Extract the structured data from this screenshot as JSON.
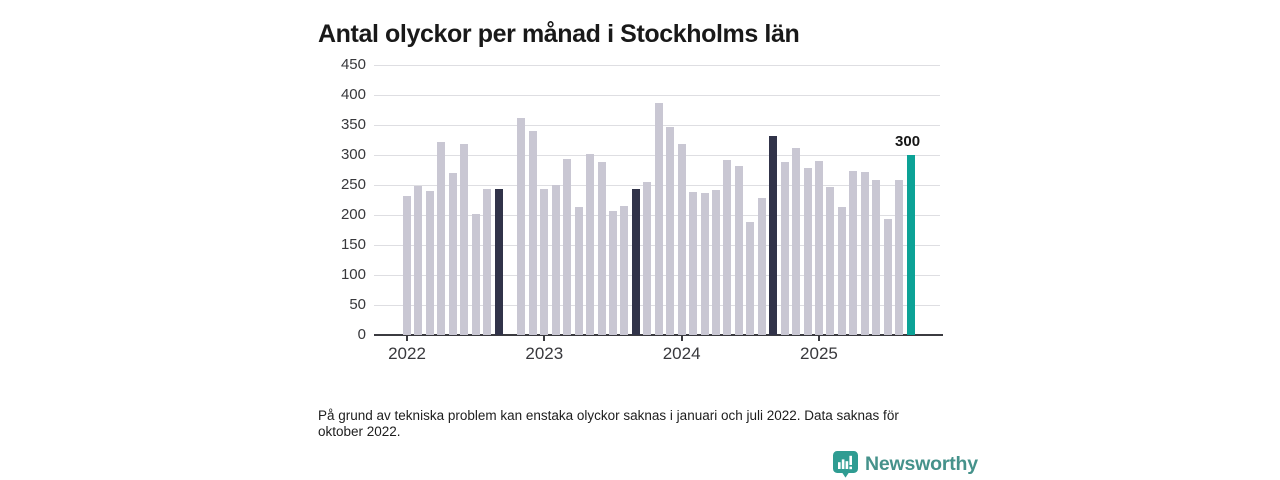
{
  "footnote": {
    "text": "På grund av tekniska problem kan enstaka olyckor saknas i januari och juli 2022. Data saknas för oktober 2022."
  },
  "branding": {
    "name": "Newsworthy",
    "icon": "newsworthy-speech-bubble-chart-icon",
    "color": "#45928b"
  },
  "chart_data": {
    "type": "bar",
    "title": "Antal olyckor per månad i Stockholms län",
    "xlabel": "",
    "ylabel": "",
    "ylim": [
      0,
      450
    ],
    "y_ticks": [
      0,
      50,
      100,
      150,
      200,
      250,
      300,
      350,
      400,
      450
    ],
    "x_ticks": [
      {
        "label": "2022",
        "month_index": 0
      },
      {
        "label": "2023",
        "month_index": 12
      },
      {
        "label": "2024",
        "month_index": 24
      },
      {
        "label": "2025",
        "month_index": 36
      }
    ],
    "grid": true,
    "legend": "none",
    "colors": {
      "default": "#c9c7d3",
      "emphasis": "#313349",
      "latest": "#0ca296"
    },
    "bars": [
      {
        "month": "2022-01",
        "value": 232,
        "style": "default"
      },
      {
        "month": "2022-02",
        "value": 248,
        "style": "default"
      },
      {
        "month": "2022-03",
        "value": 240,
        "style": "default"
      },
      {
        "month": "2022-04",
        "value": 322,
        "style": "default"
      },
      {
        "month": "2022-05",
        "value": 270,
        "style": "default"
      },
      {
        "month": "2022-06",
        "value": 318,
        "style": "default"
      },
      {
        "month": "2022-07",
        "value": 201,
        "style": "default"
      },
      {
        "month": "2022-08",
        "value": 244,
        "style": "default"
      },
      {
        "month": "2022-09",
        "value": 243,
        "style": "emphasis"
      },
      {
        "month": "2022-10",
        "value": null,
        "style": "default"
      },
      {
        "month": "2022-11",
        "value": 362,
        "style": "default"
      },
      {
        "month": "2022-12",
        "value": 340,
        "style": "default"
      },
      {
        "month": "2023-01",
        "value": 244,
        "style": "default"
      },
      {
        "month": "2023-02",
        "value": 250,
        "style": "default"
      },
      {
        "month": "2023-03",
        "value": 293,
        "style": "default"
      },
      {
        "month": "2023-04",
        "value": 214,
        "style": "default"
      },
      {
        "month": "2023-05",
        "value": 302,
        "style": "default"
      },
      {
        "month": "2023-06",
        "value": 288,
        "style": "default"
      },
      {
        "month": "2023-07",
        "value": 206,
        "style": "default"
      },
      {
        "month": "2023-08",
        "value": 215,
        "style": "default"
      },
      {
        "month": "2023-09",
        "value": 244,
        "style": "emphasis"
      },
      {
        "month": "2023-10",
        "value": 255,
        "style": "default"
      },
      {
        "month": "2023-11",
        "value": 387,
        "style": "default"
      },
      {
        "month": "2023-12",
        "value": 346,
        "style": "default"
      },
      {
        "month": "2024-01",
        "value": 319,
        "style": "default"
      },
      {
        "month": "2024-02",
        "value": 239,
        "style": "default"
      },
      {
        "month": "2024-03",
        "value": 236,
        "style": "default"
      },
      {
        "month": "2024-04",
        "value": 242,
        "style": "default"
      },
      {
        "month": "2024-05",
        "value": 292,
        "style": "default"
      },
      {
        "month": "2024-06",
        "value": 281,
        "style": "default"
      },
      {
        "month": "2024-07",
        "value": 189,
        "style": "default"
      },
      {
        "month": "2024-08",
        "value": 228,
        "style": "default"
      },
      {
        "month": "2024-09",
        "value": 332,
        "style": "emphasis"
      },
      {
        "month": "2024-10",
        "value": 289,
        "style": "default"
      },
      {
        "month": "2024-11",
        "value": 312,
        "style": "default"
      },
      {
        "month": "2024-12",
        "value": 279,
        "style": "default"
      },
      {
        "month": "2025-01",
        "value": 290,
        "style": "default"
      },
      {
        "month": "2025-02",
        "value": 246,
        "style": "default"
      },
      {
        "month": "2025-03",
        "value": 214,
        "style": "default"
      },
      {
        "month": "2025-04",
        "value": 273,
        "style": "default"
      },
      {
        "month": "2025-05",
        "value": 272,
        "style": "default"
      },
      {
        "month": "2025-06",
        "value": 258,
        "style": "default"
      },
      {
        "month": "2025-07",
        "value": 194,
        "style": "default"
      },
      {
        "month": "2025-08",
        "value": 258,
        "style": "default"
      },
      {
        "month": "2025-09",
        "value": 300,
        "style": "latest",
        "label": "300"
      }
    ]
  }
}
